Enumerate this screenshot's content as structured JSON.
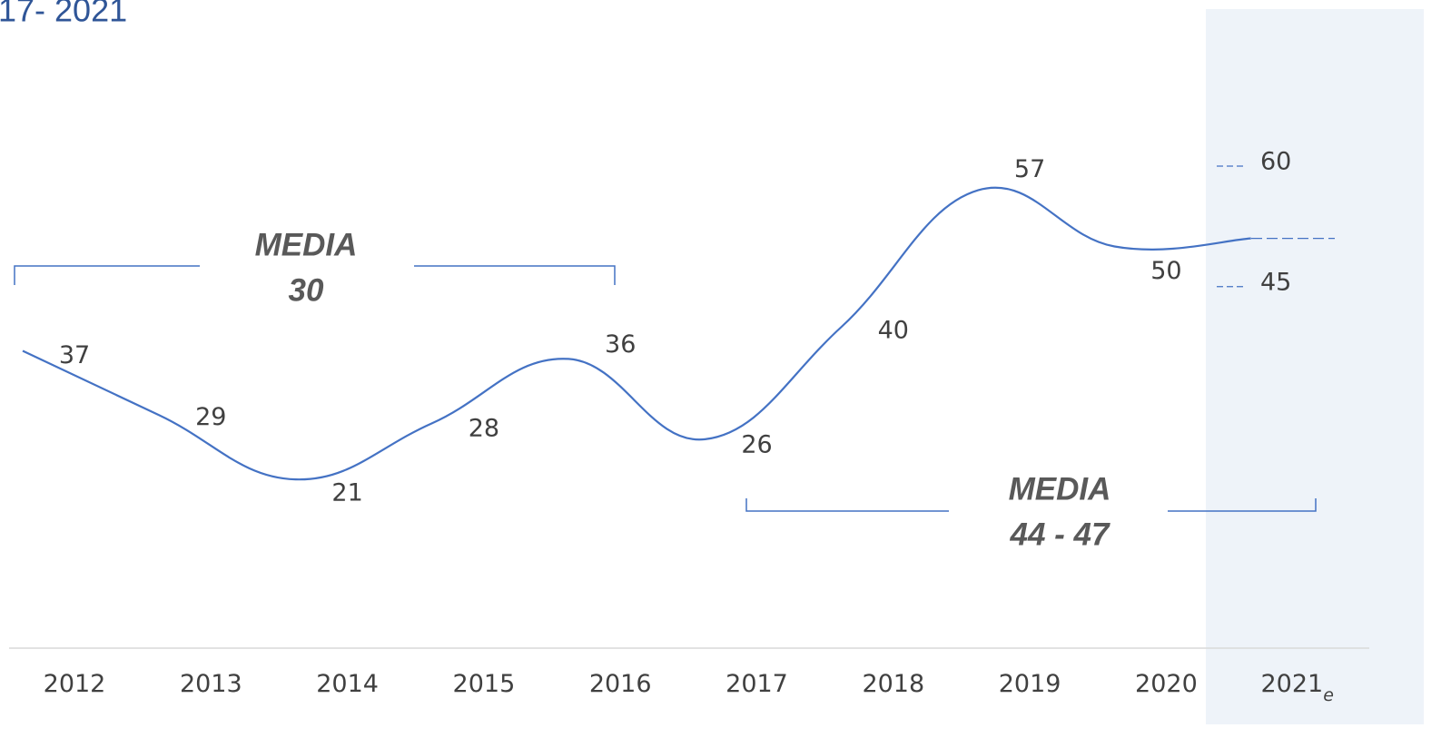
{
  "chart_data": {
    "type": "line",
    "title": "17- 2021",
    "categories": [
      "2012",
      "2013",
      "2014",
      "2015",
      "2016",
      "2017",
      "2018",
      "2019",
      "2020",
      "2021"
    ],
    "estimate_mark": "e",
    "values": [
      37,
      29,
      21,
      28,
      36,
      26,
      40,
      57,
      50,
      51
    ],
    "value_labels": [
      "37",
      "29",
      "21",
      "28",
      "36",
      "26",
      "40",
      "57",
      "50",
      null
    ],
    "color": "#4472c4",
    "ylim": [
      0,
      80
    ],
    "estimate": {
      "low": 45,
      "high": 60
    },
    "annotations": [
      {
        "lines": [
          "MEDIA",
          "30"
        ]
      },
      {
        "lines": [
          "MEDIA",
          "44 - 47"
        ]
      }
    ]
  }
}
